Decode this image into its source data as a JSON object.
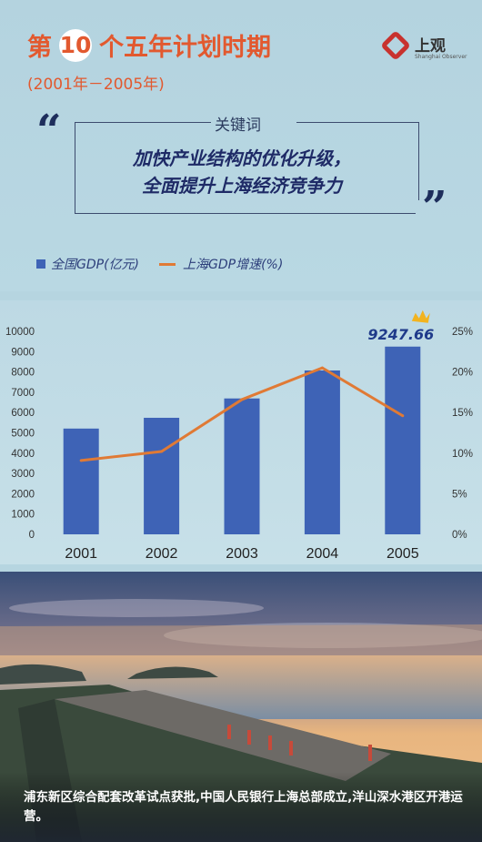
{
  "header": {
    "title_prefix": "第",
    "title_number": "10",
    "title_suffix": "个五年计划时期",
    "period": "(2001年－2005年)",
    "logo_text": "上观",
    "logo_sub": "Shanghai Observer"
  },
  "keywords": {
    "label": "关键词",
    "line1": "加快产业结构的优化升级，",
    "line2": "全面提升上海经济竞争力"
  },
  "legend": {
    "bar_label": "全国GDP(亿元)",
    "line_label": "上海GDP增速(%)"
  },
  "chart_data": {
    "type": "bar",
    "categories": [
      "2001",
      "2002",
      "2003",
      "2004",
      "2005"
    ],
    "series": [
      {
        "name": "全国GDP(亿元)",
        "type": "bar",
        "values": [
          5210,
          5741,
          6694,
          8072,
          9247.66
        ],
        "color": "#3e63b6"
      },
      {
        "name": "上海GDP增速(%)",
        "type": "line",
        "axis": "right",
        "values": [
          9.1,
          10.2,
          16.6,
          20.5,
          14.6
        ],
        "color": "#e07a35"
      }
    ],
    "highlight_label": "9247.66",
    "y_left": {
      "lim": [
        0,
        10000
      ],
      "ticks": [
        "0",
        "1000",
        "2000",
        "3000",
        "4000",
        "5000",
        "6000",
        "7000",
        "8000",
        "9000",
        "10000"
      ]
    },
    "y_right": {
      "lim": [
        0,
        25
      ],
      "ticks": [
        "0%",
        "5%",
        "10%",
        "15%",
        "20%",
        "25%"
      ]
    },
    "grid": false
  },
  "caption": "浦东新区综合配套改革试点获批,中国人民银行上海总部成立,洋山深水港区开港运营。"
}
